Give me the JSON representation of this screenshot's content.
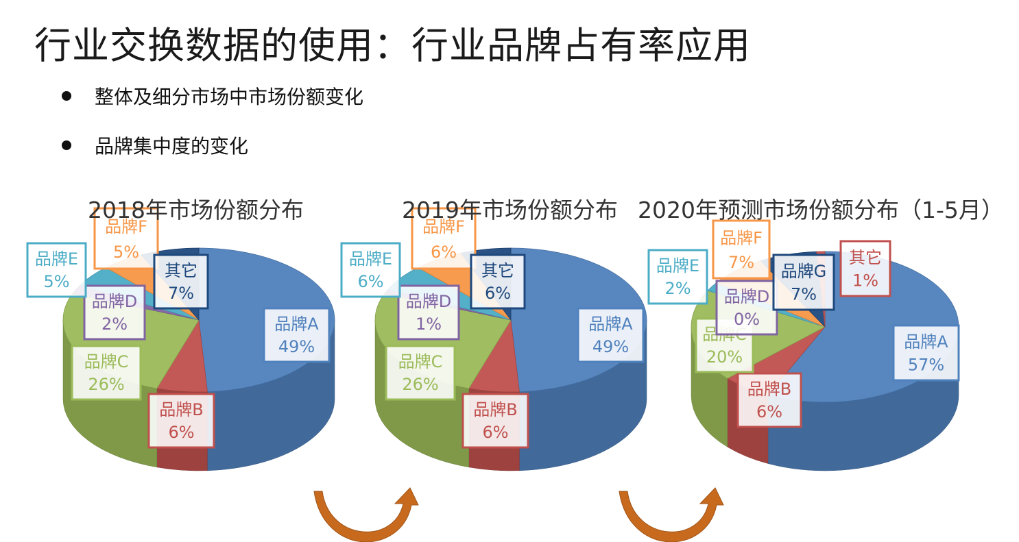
{
  "title": "行业交换数据的使用：行业品牌占有率应用",
  "bullets": [
    "整体及细分市场中市场份额变化",
    "品牌集中度的变化"
  ],
  "colors": {
    "brandA": "#4F81BD",
    "brandB": "#C0504D",
    "brandC": "#9BBB59",
    "brandD": "#8064A2",
    "brandE": "#4BACC6",
    "brandF": "#F79646",
    "brandG": "#1F497D",
    "other": "#1F497D",
    "arrow": "#C86A1E"
  },
  "chart_data": [
    {
      "type": "pie",
      "title": "2018年市场份额分布",
      "slices": [
        {
          "label": "品牌A",
          "value": 49,
          "display": "49%",
          "color": "#4F81BD"
        },
        {
          "label": "品牌B",
          "value": 6,
          "display": "6%",
          "color": "#C0504D"
        },
        {
          "label": "品牌C",
          "value": 26,
          "display": "26%",
          "color": "#9BBB59"
        },
        {
          "label": "品牌D",
          "value": 2,
          "display": "2%",
          "color": "#8064A2"
        },
        {
          "label": "品牌E",
          "value": 5,
          "display": "5%",
          "color": "#4BACC6"
        },
        {
          "label": "品牌F",
          "value": 5,
          "display": "5%",
          "color": "#F79646"
        },
        {
          "label": "其它",
          "value": 7,
          "display": "7%",
          "color": "#1F497D"
        }
      ]
    },
    {
      "type": "pie",
      "title": "2019年市场份额分布",
      "slices": [
        {
          "label": "品牌A",
          "value": 49,
          "display": "49%",
          "color": "#4F81BD"
        },
        {
          "label": "品牌B",
          "value": 6,
          "display": "6%",
          "color": "#C0504D"
        },
        {
          "label": "品牌C",
          "value": 26,
          "display": "26%",
          "color": "#9BBB59"
        },
        {
          "label": "品牌D",
          "value": 1,
          "display": "1%",
          "color": "#8064A2"
        },
        {
          "label": "品牌E",
          "value": 6,
          "display": "6%",
          "color": "#4BACC6"
        },
        {
          "label": "品牌F",
          "value": 6,
          "display": "6%",
          "color": "#F79646"
        },
        {
          "label": "其它",
          "value": 6,
          "display": "6%",
          "color": "#1F497D"
        }
      ]
    },
    {
      "type": "pie",
      "title": "2020年预测市场份额分布（1-5月）",
      "slices": [
        {
          "label": "品牌A",
          "value": 57,
          "display": "57%",
          "color": "#4F81BD"
        },
        {
          "label": "品牌B",
          "value": 6,
          "display": "6%",
          "color": "#C0504D"
        },
        {
          "label": "品牌C",
          "value": 20,
          "display": "20%",
          "color": "#9BBB59"
        },
        {
          "label": "品牌D",
          "value": 0,
          "display": "0%",
          "color": "#8064A2"
        },
        {
          "label": "品牌E",
          "value": 2,
          "display": "2%",
          "color": "#4BACC6"
        },
        {
          "label": "品牌F",
          "value": 7,
          "display": "7%",
          "color": "#F79646"
        },
        {
          "label": "品牌G",
          "value": 7,
          "display": "7%",
          "color": "#1F497D"
        },
        {
          "label": "其它",
          "value": 1,
          "display": "1%",
          "color": "#C0504D"
        }
      ]
    }
  ]
}
